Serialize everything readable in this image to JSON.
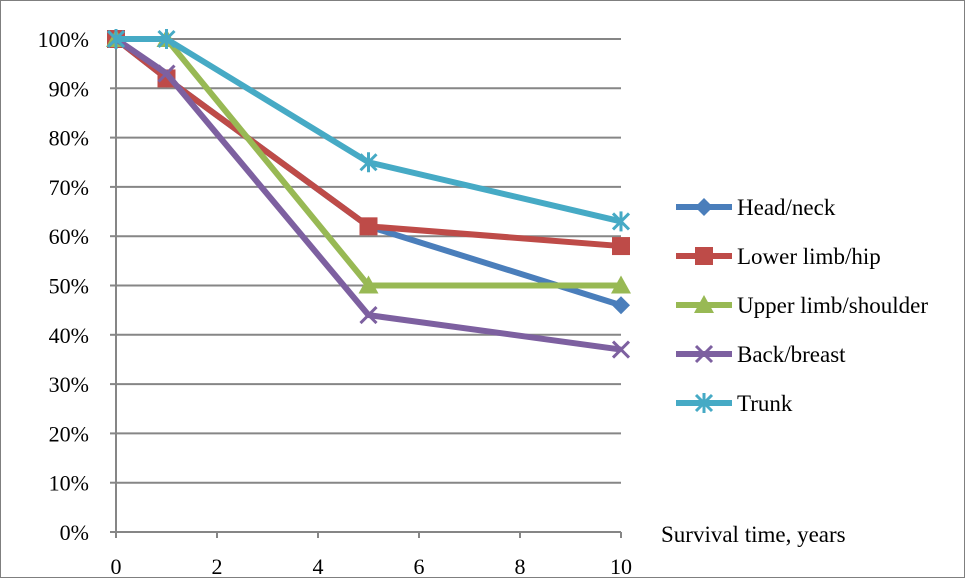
{
  "chart_data": {
    "type": "line",
    "title": "",
    "xlabel": "Survival time, years",
    "ylabel": "",
    "xlim": [
      0,
      10
    ],
    "ylim": [
      0,
      100
    ],
    "xticks": [
      0,
      2,
      4,
      6,
      8,
      10
    ],
    "xtick_labels": [
      "0",
      "2",
      "4",
      "6",
      "8",
      "10"
    ],
    "yticks": [
      0,
      10,
      20,
      30,
      40,
      50,
      60,
      70,
      80,
      90,
      100
    ],
    "ytick_labels": [
      "0%",
      "10%",
      "20%",
      "30%",
      "40%",
      "50%",
      "60%",
      "70%",
      "80%",
      "90%",
      "100%"
    ],
    "grid": "horizontal",
    "legend_position": "right",
    "series": [
      {
        "name": "Head/neck",
        "color": "#4a7ebb",
        "marker": "diamond",
        "x": [
          0,
          1,
          5,
          10
        ],
        "values": [
          100,
          92,
          62,
          46
        ]
      },
      {
        "name": "Lower limb/hip",
        "color": "#be4b48",
        "marker": "square",
        "x": [
          0,
          1,
          5,
          10
        ],
        "values": [
          100,
          92,
          62,
          58
        ]
      },
      {
        "name": "Upper limb/shoulder",
        "color": "#98b954",
        "marker": "triangle",
        "x": [
          0,
          1,
          5,
          10
        ],
        "values": [
          100,
          100,
          50,
          50
        ]
      },
      {
        "name": "Back/breast",
        "color": "#7d60a0",
        "marker": "x",
        "x": [
          0,
          1,
          5,
          10
        ],
        "values": [
          100,
          93,
          44,
          37
        ]
      },
      {
        "name": "Trunk",
        "color": "#46aac5",
        "marker": "star",
        "x": [
          0,
          1,
          5,
          10
        ],
        "values": [
          100,
          100,
          75,
          63
        ]
      }
    ]
  }
}
